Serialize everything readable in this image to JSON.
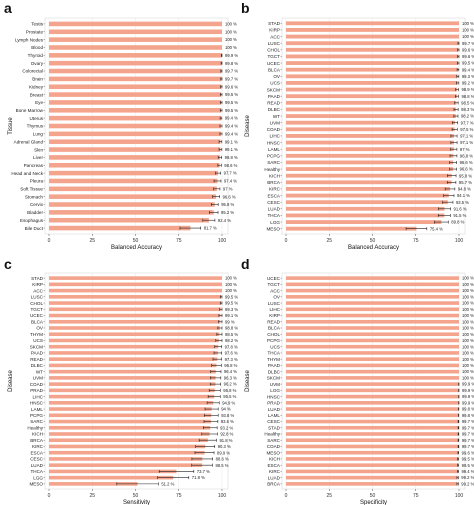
{
  "panels": [
    {
      "letter": "a",
      "color": "#f4a48c"
    },
    {
      "letter": "b",
      "color": "#f4a48c"
    },
    {
      "letter": "c",
      "color": "#f4a48c"
    },
    {
      "letter": "d",
      "color": "#f4a48c"
    }
  ],
  "chart_data": [
    {
      "type": "bar",
      "orientation": "horizontal",
      "panel": "a",
      "xlabel": "Balanced Accuracy",
      "ylabel": "Tissue",
      "xlim": [
        0,
        100
      ],
      "xticks": [
        "0",
        "25",
        "50",
        "75",
        "100"
      ],
      "categories": [
        "Testis",
        "Prostate",
        "Lymph Nodes",
        "Blood",
        "Thyroid",
        "Ovary",
        "Colorectal",
        "Brain",
        "Kidney",
        "Breast",
        "Eye",
        "Bone Marrow",
        "Uterus",
        "Thymus",
        "Lung",
        "Adrenal Gland",
        "Skin",
        "Liver",
        "Pancreas",
        "Head and Neck",
        "Pleura",
        "Soft Tissue",
        "Stomach",
        "Cervix",
        "Bladder",
        "Esophagus",
        "Bile Duct"
      ],
      "values": [
        100,
        100,
        100,
        100,
        99.9,
        99.8,
        99.7,
        99.7,
        99.6,
        99.5,
        99.5,
        99.5,
        99.4,
        99.4,
        99.4,
        99.1,
        99.1,
        98.8,
        98.6,
        97.7,
        97.4,
        97.0,
        96.6,
        95.8,
        95.2,
        92.4,
        81.7
      ],
      "labels": [
        "100 %",
        "100 %",
        "100 %",
        "100 %",
        "99.9 %",
        "99.8 %",
        "99.7 %",
        "99.7 %",
        "99.6 %",
        "99.5 %",
        "99.5 %",
        "99.5 %",
        "99.4 %",
        "99.4 %",
        "99.4 %",
        "99.1 %",
        "99.1 %",
        "98.8 %",
        "98.6 %",
        "97.7 %",
        "97.4 %",
        "97 %",
        "96.6 %",
        "95.8 %",
        "95.2 %",
        "92.4 %",
        "81.7 %"
      ],
      "errors": [
        0,
        0,
        0,
        0,
        0.3,
        0.3,
        0.4,
        0.4,
        0.4,
        0.5,
        0.5,
        0.5,
        0.5,
        0.6,
        0.6,
        0.8,
        0.8,
        1.0,
        1.0,
        1.5,
        2.0,
        1.8,
        2.0,
        2.0,
        2.5,
        3.5,
        6.0
      ]
    },
    {
      "type": "bar",
      "orientation": "horizontal",
      "panel": "b",
      "xlabel": "Balanced Accuracy",
      "ylabel": "Disease",
      "xlim": [
        0,
        100
      ],
      "xticks": [
        "0",
        "25",
        "50",
        "75",
        "100"
      ],
      "categories": [
        "STAD",
        "KIRP",
        "ACC",
        "LUSC",
        "CHOL",
        "TGCT",
        "UCEC",
        "BLCA",
        "OV",
        "UCS",
        "SKCM",
        "PAAD",
        "READ",
        "DLBC",
        "WT",
        "UVM",
        "COAD",
        "LIHC",
        "HNSC",
        "LAML",
        "PCPG",
        "SARC",
        "Healthy",
        "KICH",
        "BRCA",
        "KIRC",
        "ESCA",
        "CESC",
        "LUAD",
        "THCA",
        "LGG",
        "MESO"
      ],
      "values": [
        100,
        100,
        100,
        99.7,
        99.6,
        99.6,
        99.5,
        99.4,
        99.3,
        99.2,
        98.9,
        98.8,
        98.5,
        98.3,
        98.2,
        97.7,
        97.5,
        97.1,
        97.1,
        97.0,
        96.8,
        96.6,
        96.6,
        95.8,
        95.7,
        94.8,
        94.1,
        93.5,
        91.6,
        91.5,
        89.8,
        75.4
      ],
      "labels": [
        "100 %",
        "100 %",
        "100 %",
        "99.7 %",
        "99.6 %",
        "99.6 %",
        "99.5 %",
        "99.4 %",
        "99.3 %",
        "99.2 %",
        "98.9 %",
        "98.8 %",
        "98.5 %",
        "98.3 %",
        "98.2 %",
        "97.7 %",
        "97.5 %",
        "97.1 %",
        "97.1 %",
        "97 %",
        "96.8 %",
        "96.6 %",
        "96.6 %",
        "95.8 %",
        "95.7 %",
        "94.8 %",
        "94.1 %",
        "93.5 %",
        "91.6 %",
        "91.5 %",
        "89.8 %",
        "75.4 %"
      ],
      "errors": [
        0,
        0,
        0,
        0.3,
        0.4,
        0.4,
        0.5,
        0.5,
        0.6,
        0.7,
        0.8,
        0.9,
        1.0,
        1.2,
        1.2,
        1.5,
        1.5,
        1.8,
        1.8,
        1.8,
        2.0,
        2.0,
        2.0,
        2.5,
        2.5,
        2.8,
        3.0,
        3.0,
        3.5,
        3.5,
        4.0,
        6.0
      ]
    },
    {
      "type": "bar",
      "orientation": "horizontal",
      "panel": "c",
      "xlabel": "Sensitivity",
      "ylabel": "Disease",
      "xlim": [
        0,
        100
      ],
      "xticks": [
        "0",
        "25",
        "50",
        "75",
        "100"
      ],
      "categories": [
        "STAD",
        "KIRP",
        "ACC",
        "LUSC",
        "CHOL",
        "TGCT",
        "UCEC",
        "BLCA",
        "OV",
        "THYM",
        "UCS",
        "SKCM",
        "PAAD",
        "READ",
        "DLBC",
        "WT",
        "UVM",
        "COAD",
        "PRAD",
        "LIHC",
        "HNSC",
        "LAML",
        "PCPG",
        "SARC",
        "Healthy",
        "KICH",
        "BRCA",
        "KIRC",
        "ESCA",
        "CESC",
        "LUAD",
        "THCA",
        "LGG",
        "MESO"
      ],
      "values": [
        100,
        100,
        100,
        99.5,
        99.5,
        99.3,
        99.1,
        99.0,
        98.8,
        98.5,
        98.2,
        97.8,
        97.6,
        97.3,
        96.8,
        96.4,
        96.3,
        96.2,
        95.8,
        95.5,
        94.9,
        94.0,
        93.8,
        93.6,
        93.2,
        92.8,
        91.8,
        90.3,
        89.9,
        88.6,
        88.5,
        73.7,
        71.8,
        51.2
      ],
      "labels": [
        "100 %",
        "100 %",
        "100 %",
        "99.5 %",
        "99.5 %",
        "99.3 %",
        "99.1 %",
        "99 %",
        "98.8 %",
        "98.5 %",
        "98.2 %",
        "97.8 %",
        "97.6 %",
        "97.3 %",
        "96.8 %",
        "96.4 %",
        "96.3 %",
        "96.2 %",
        "95.8 %",
        "95.5 %",
        "94.9 %",
        "94 %",
        "93.8 %",
        "93.6 %",
        "93.2 %",
        "92.8 %",
        "91.8 %",
        "90.3 %",
        "89.9 %",
        "88.6 %",
        "88.5 %",
        "73.7 %",
        "71.8 %",
        "51.2 %"
      ],
      "errors": [
        0,
        0,
        0,
        0.5,
        0.5,
        0.7,
        0.9,
        1.0,
        1.2,
        1.5,
        1.8,
        2.0,
        2.2,
        2.5,
        2.8,
        3.0,
        3.0,
        3.0,
        3.2,
        3.5,
        3.5,
        3.8,
        4.0,
        4.0,
        4.0,
        4.5,
        5.0,
        5.5,
        5.5,
        6.0,
        6.0,
        10.0,
        9.0,
        12.0
      ]
    },
    {
      "type": "bar",
      "orientation": "horizontal",
      "panel": "d",
      "xlabel": "Specificity",
      "ylabel": "Disease",
      "xlim": [
        0,
        100
      ],
      "xticks": [
        "0",
        "25",
        "50",
        "75",
        "100"
      ],
      "categories": [
        "UCEC",
        "TGCT",
        "ACC",
        "OV",
        "LUSC",
        "LIHC",
        "KIRP",
        "READ",
        "BLCA",
        "CHOL",
        "PCPG",
        "UCS",
        "THCA",
        "THYM",
        "PAAD",
        "DLBC",
        "SKCM",
        "UVM",
        "LGG",
        "HNSC",
        "PRAD",
        "LUAD",
        "LAML",
        "CESC",
        "STAD",
        "Healthy",
        "SARC",
        "COAD",
        "MESO",
        "KICH",
        "ESCA",
        "KIRC",
        "LUAD",
        "BRCA"
      ],
      "values": [
        100,
        100,
        100,
        100,
        100,
        100,
        100,
        100,
        100,
        100,
        100,
        100,
        100,
        100,
        100,
        100,
        100,
        99.9,
        99.9,
        99.9,
        99.9,
        99.8,
        99.8,
        99.7,
        99.7,
        99.7,
        99.7,
        99.7,
        99.6,
        99.5,
        99.5,
        99.4,
        99.2,
        99.2
      ],
      "labels": [
        "100 %",
        "100 %",
        "100 %",
        "100 %",
        "100 %",
        "100 %",
        "100 %",
        "100 %",
        "100 %",
        "100 %",
        "100 %",
        "100 %",
        "100 %",
        "100 %",
        "100 %",
        "100 %",
        "100 %",
        "99.9 %",
        "99.9 %",
        "99.9 %",
        "99.9 %",
        "99.8 %",
        "99.8 %",
        "99.7 %",
        "99.7 %",
        "99.7 %",
        "99.7 %",
        "99.7 %",
        "99.6 %",
        "99.5 %",
        "99.5 %",
        "99.4 %",
        "99.2 %",
        "99.2 %"
      ],
      "errors": [
        0,
        0,
        0,
        0,
        0,
        0,
        0,
        0,
        0,
        0,
        0,
        0,
        0,
        0,
        0,
        0,
        0,
        0.1,
        0.1,
        0.1,
        0.1,
        0.1,
        0.1,
        0.2,
        0.2,
        0.2,
        0.2,
        0.2,
        0.2,
        0.3,
        0.3,
        0.3,
        0.4,
        0.4
      ]
    }
  ]
}
